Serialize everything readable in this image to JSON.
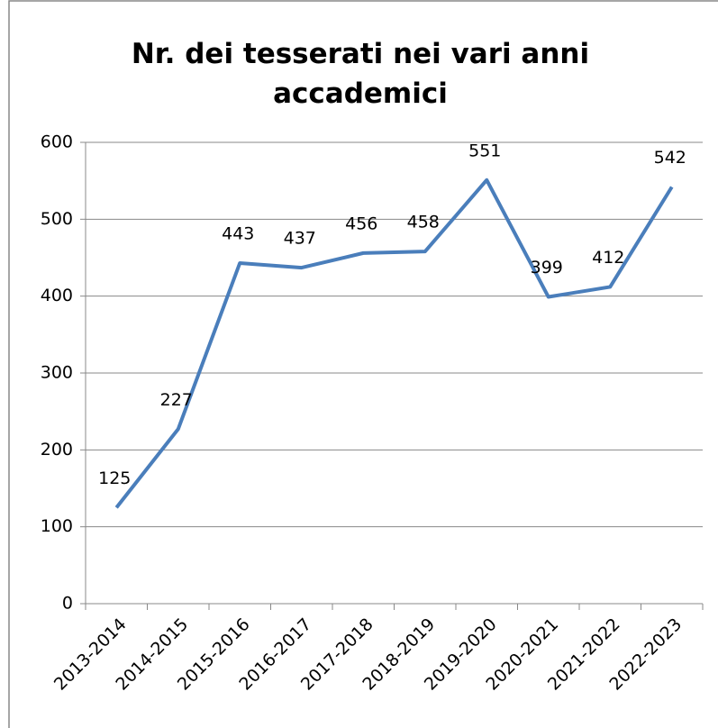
{
  "chart_data": {
    "type": "line",
    "title": "Nr. dei tesserati nei vari anni accademici",
    "categories": [
      "2013-2014",
      "2014-2015",
      "2015-2016",
      "2016-2017",
      "2017-2018",
      "2018-2019",
      "2019-2020",
      "2020-2021",
      "2021-2022",
      "2022-2023"
    ],
    "series": [
      {
        "color": "#4a7ebb",
        "values": [
          125,
          227,
          443,
          437,
          456,
          458,
          551,
          399,
          412,
          542
        ]
      }
    ],
    "ylim": [
      0,
      600
    ],
    "yticks": [
      0,
      100,
      200,
      300,
      400,
      500,
      600
    ],
    "grid": true
  }
}
